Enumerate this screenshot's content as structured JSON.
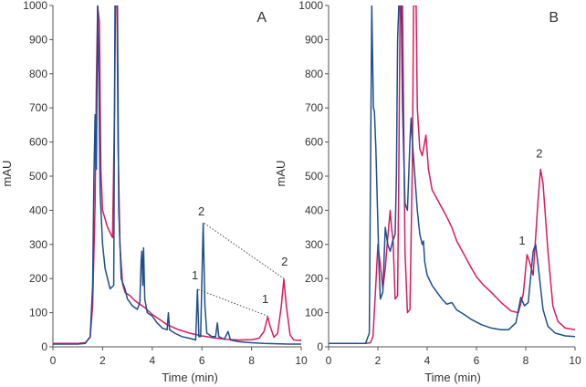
{
  "chart_data": [
    {
      "type": "line",
      "panel_label": "A",
      "xlabel": "Time (min)",
      "ylabel": "mAU",
      "xlim": [
        0,
        10
      ],
      "ylim": [
        0,
        1000
      ],
      "xticks": [
        0,
        2,
        4,
        6,
        8,
        10
      ],
      "yticks": [
        0,
        100,
        200,
        300,
        400,
        500,
        600,
        700,
        800,
        900,
        1000
      ],
      "grid": false,
      "series": [
        {
          "name": "magenta trace",
          "color": "#d81b60",
          "points": [
            [
              0,
              10
            ],
            [
              1.0,
              10
            ],
            [
              1.3,
              12
            ],
            [
              1.5,
              28
            ],
            [
              1.6,
              120
            ],
            [
              1.7,
              420
            ],
            [
              1.75,
              780
            ],
            [
              1.8,
              1000
            ],
            [
              1.87,
              950
            ],
            [
              1.93,
              520
            ],
            [
              2.0,
              400
            ],
            [
              2.2,
              350
            ],
            [
              2.4,
              320
            ],
            [
              2.48,
              700
            ],
            [
              2.52,
              1000
            ],
            [
              2.58,
              1000
            ],
            [
              2.62,
              600
            ],
            [
              2.7,
              300
            ],
            [
              2.8,
              185
            ],
            [
              2.9,
              160
            ],
            [
              3.1,
              150
            ],
            [
              3.3,
              135
            ],
            [
              3.5,
              125
            ],
            [
              3.7,
              115
            ],
            [
              4.0,
              95
            ],
            [
              4.3,
              80
            ],
            [
              4.6,
              65
            ],
            [
              5.0,
              52
            ],
            [
              5.5,
              40
            ],
            [
              6.0,
              32
            ],
            [
              6.5,
              26
            ],
            [
              7.0,
              22
            ],
            [
              7.5,
              20
            ],
            [
              8.0,
              21
            ],
            [
              8.3,
              25
            ],
            [
              8.5,
              45
            ],
            [
              8.65,
              88
            ],
            [
              8.75,
              60
            ],
            [
              8.9,
              28
            ],
            [
              9.05,
              40
            ],
            [
              9.2,
              120
            ],
            [
              9.3,
              198
            ],
            [
              9.4,
              120
            ],
            [
              9.55,
              35
            ],
            [
              9.7,
              20
            ],
            [
              10,
              19
            ]
          ]
        },
        {
          "name": "blue trace",
          "color": "#1f4e8c",
          "points": [
            [
              0,
              8
            ],
            [
              1.0,
              8
            ],
            [
              1.3,
              10
            ],
            [
              1.5,
              30
            ],
            [
              1.6,
              180
            ],
            [
              1.65,
              500
            ],
            [
              1.7,
              680
            ],
            [
              1.75,
              520
            ],
            [
              1.8,
              1000
            ],
            [
              1.85,
              800
            ],
            [
              1.9,
              450
            ],
            [
              2.0,
              300
            ],
            [
              2.1,
              230
            ],
            [
              2.2,
              200
            ],
            [
              2.3,
              170
            ],
            [
              2.45,
              180
            ],
            [
              2.5,
              1000
            ],
            [
              2.6,
              1000
            ],
            [
              2.65,
              400
            ],
            [
              2.75,
              200
            ],
            [
              2.9,
              170
            ],
            [
              3.0,
              140
            ],
            [
              3.2,
              120
            ],
            [
              3.4,
              110
            ],
            [
              3.5,
              130
            ],
            [
              3.55,
              250
            ],
            [
              3.58,
              280
            ],
            [
              3.62,
              180
            ],
            [
              3.65,
              290
            ],
            [
              3.7,
              140
            ],
            [
              3.8,
              100
            ],
            [
              4.0,
              90
            ],
            [
              4.2,
              70
            ],
            [
              4.4,
              55
            ],
            [
              4.6,
              50
            ],
            [
              4.65,
              100
            ],
            [
              4.7,
              50
            ],
            [
              4.9,
              40
            ],
            [
              5.2,
              30
            ],
            [
              5.5,
              25
            ],
            [
              5.75,
              20
            ],
            [
              5.82,
              168
            ],
            [
              5.88,
              30
            ],
            [
              5.95,
              30
            ],
            [
              6.05,
              362
            ],
            [
              6.12,
              120
            ],
            [
              6.2,
              40
            ],
            [
              6.4,
              30
            ],
            [
              6.55,
              30
            ],
            [
              6.62,
              70
            ],
            [
              6.68,
              30
            ],
            [
              6.9,
              22
            ],
            [
              7.05,
              45
            ],
            [
              7.15,
              20
            ],
            [
              7.5,
              15
            ],
            [
              8.0,
              12
            ],
            [
              8.5,
              10
            ],
            [
              9.0,
              9
            ],
            [
              9.5,
              8
            ],
            [
              10,
              8
            ]
          ]
        }
      ],
      "annotations": [
        {
          "text": "2",
          "x": 5.98,
          "y": 385
        },
        {
          "text": "1",
          "x": 5.72,
          "y": 198
        },
        {
          "text": "2",
          "x": 9.33,
          "y": 238
        },
        {
          "text": "1",
          "x": 8.55,
          "y": 128
        }
      ],
      "connectors": [
        {
          "from": [
            6.1,
            362
          ],
          "to": [
            9.3,
            200
          ]
        },
        {
          "from": [
            5.85,
            168
          ],
          "to": [
            8.65,
            90
          ]
        }
      ]
    },
    {
      "type": "line",
      "panel_label": "B",
      "xlabel": "Time (min)",
      "ylabel": "mAU",
      "xlim": [
        0,
        10
      ],
      "ylim": [
        0,
        1000
      ],
      "xticks": [
        0,
        2,
        4,
        6,
        8,
        10
      ],
      "yticks": [
        0,
        100,
        200,
        300,
        400,
        500,
        600,
        700,
        800,
        900,
        1000
      ],
      "grid": false,
      "series": [
        {
          "name": "magenta trace",
          "color": "#d81b60",
          "points": [
            [
              0,
              10
            ],
            [
              1.5,
              10
            ],
            [
              1.7,
              12
            ],
            [
              1.8,
              30
            ],
            [
              1.9,
              160
            ],
            [
              2.0,
              300
            ],
            [
              2.1,
              240
            ],
            [
              2.2,
              170
            ],
            [
              2.3,
              230
            ],
            [
              2.4,
              320
            ],
            [
              2.5,
              400
            ],
            [
              2.55,
              350
            ],
            [
              2.62,
              310
            ],
            [
              2.7,
              140
            ],
            [
              2.8,
              150
            ],
            [
              2.85,
              500
            ],
            [
              2.9,
              1000
            ],
            [
              3.0,
              1000
            ],
            [
              3.1,
              280
            ],
            [
              3.2,
              100
            ],
            [
              3.3,
              110
            ],
            [
              3.4,
              540
            ],
            [
              3.45,
              1000
            ],
            [
              3.55,
              1000
            ],
            [
              3.6,
              700
            ],
            [
              3.7,
              580
            ],
            [
              3.8,
              560
            ],
            [
              3.9,
              600
            ],
            [
              3.95,
              620
            ],
            [
              4.05,
              520
            ],
            [
              4.2,
              460
            ],
            [
              4.5,
              420
            ],
            [
              4.8,
              380
            ],
            [
              5.0,
              350
            ],
            [
              5.2,
              310
            ],
            [
              5.5,
              270
            ],
            [
              5.8,
              230
            ],
            [
              6.0,
              205
            ],
            [
              6.3,
              180
            ],
            [
              6.6,
              160
            ],
            [
              7.0,
              130
            ],
            [
              7.4,
              105
            ],
            [
              7.7,
              100
            ],
            [
              7.9,
              155
            ],
            [
              8.05,
              270
            ],
            [
              8.15,
              250
            ],
            [
              8.3,
              210
            ],
            [
              8.5,
              430
            ],
            [
              8.6,
              520
            ],
            [
              8.7,
              480
            ],
            [
              8.9,
              280
            ],
            [
              9.1,
              120
            ],
            [
              9.3,
              75
            ],
            [
              9.6,
              55
            ],
            [
              10,
              50
            ]
          ]
        },
        {
          "name": "blue trace",
          "color": "#1f4e8c",
          "points": [
            [
              0,
              10
            ],
            [
              1.5,
              10
            ],
            [
              1.65,
              40
            ],
            [
              1.75,
              1000
            ],
            [
              1.82,
              700
            ],
            [
              1.86,
              690
            ],
            [
              1.92,
              580
            ],
            [
              2.0,
              360
            ],
            [
              2.05,
              220
            ],
            [
              2.1,
              140
            ],
            [
              2.2,
              160
            ],
            [
              2.3,
              350
            ],
            [
              2.4,
              300
            ],
            [
              2.5,
              280
            ],
            [
              2.6,
              310
            ],
            [
              2.7,
              330
            ],
            [
              2.75,
              500
            ],
            [
              2.8,
              900
            ],
            [
              2.85,
              1000
            ],
            [
              2.95,
              1000
            ],
            [
              3.0,
              700
            ],
            [
              3.1,
              420
            ],
            [
              3.2,
              400
            ],
            [
              3.3,
              600
            ],
            [
              3.35,
              670
            ],
            [
              3.4,
              600
            ],
            [
              3.5,
              500
            ],
            [
              3.6,
              400
            ],
            [
              3.7,
              330
            ],
            [
              3.8,
              300
            ],
            [
              3.85,
              310
            ],
            [
              3.9,
              250
            ],
            [
              4.0,
              210
            ],
            [
              4.2,
              180
            ],
            [
              4.4,
              160
            ],
            [
              4.6,
              140
            ],
            [
              4.8,
              125
            ],
            [
              5.0,
              130
            ],
            [
              5.2,
              108
            ],
            [
              5.5,
              95
            ],
            [
              5.8,
              80
            ],
            [
              6.2,
              65
            ],
            [
              6.6,
              55
            ],
            [
              7.0,
              50
            ],
            [
              7.3,
              50
            ],
            [
              7.6,
              70
            ],
            [
              7.8,
              145
            ],
            [
              7.95,
              120
            ],
            [
              8.1,
              130
            ],
            [
              8.3,
              280
            ],
            [
              8.4,
              300
            ],
            [
              8.5,
              240
            ],
            [
              8.7,
              110
            ],
            [
              8.9,
              60
            ],
            [
              9.2,
              40
            ],
            [
              9.6,
              32
            ],
            [
              10,
              30
            ]
          ]
        }
      ],
      "annotations": [
        {
          "text": "1",
          "x": 7.85,
          "y": 300
        },
        {
          "text": "2",
          "x": 8.55,
          "y": 555
        }
      ],
      "connectors": []
    }
  ]
}
